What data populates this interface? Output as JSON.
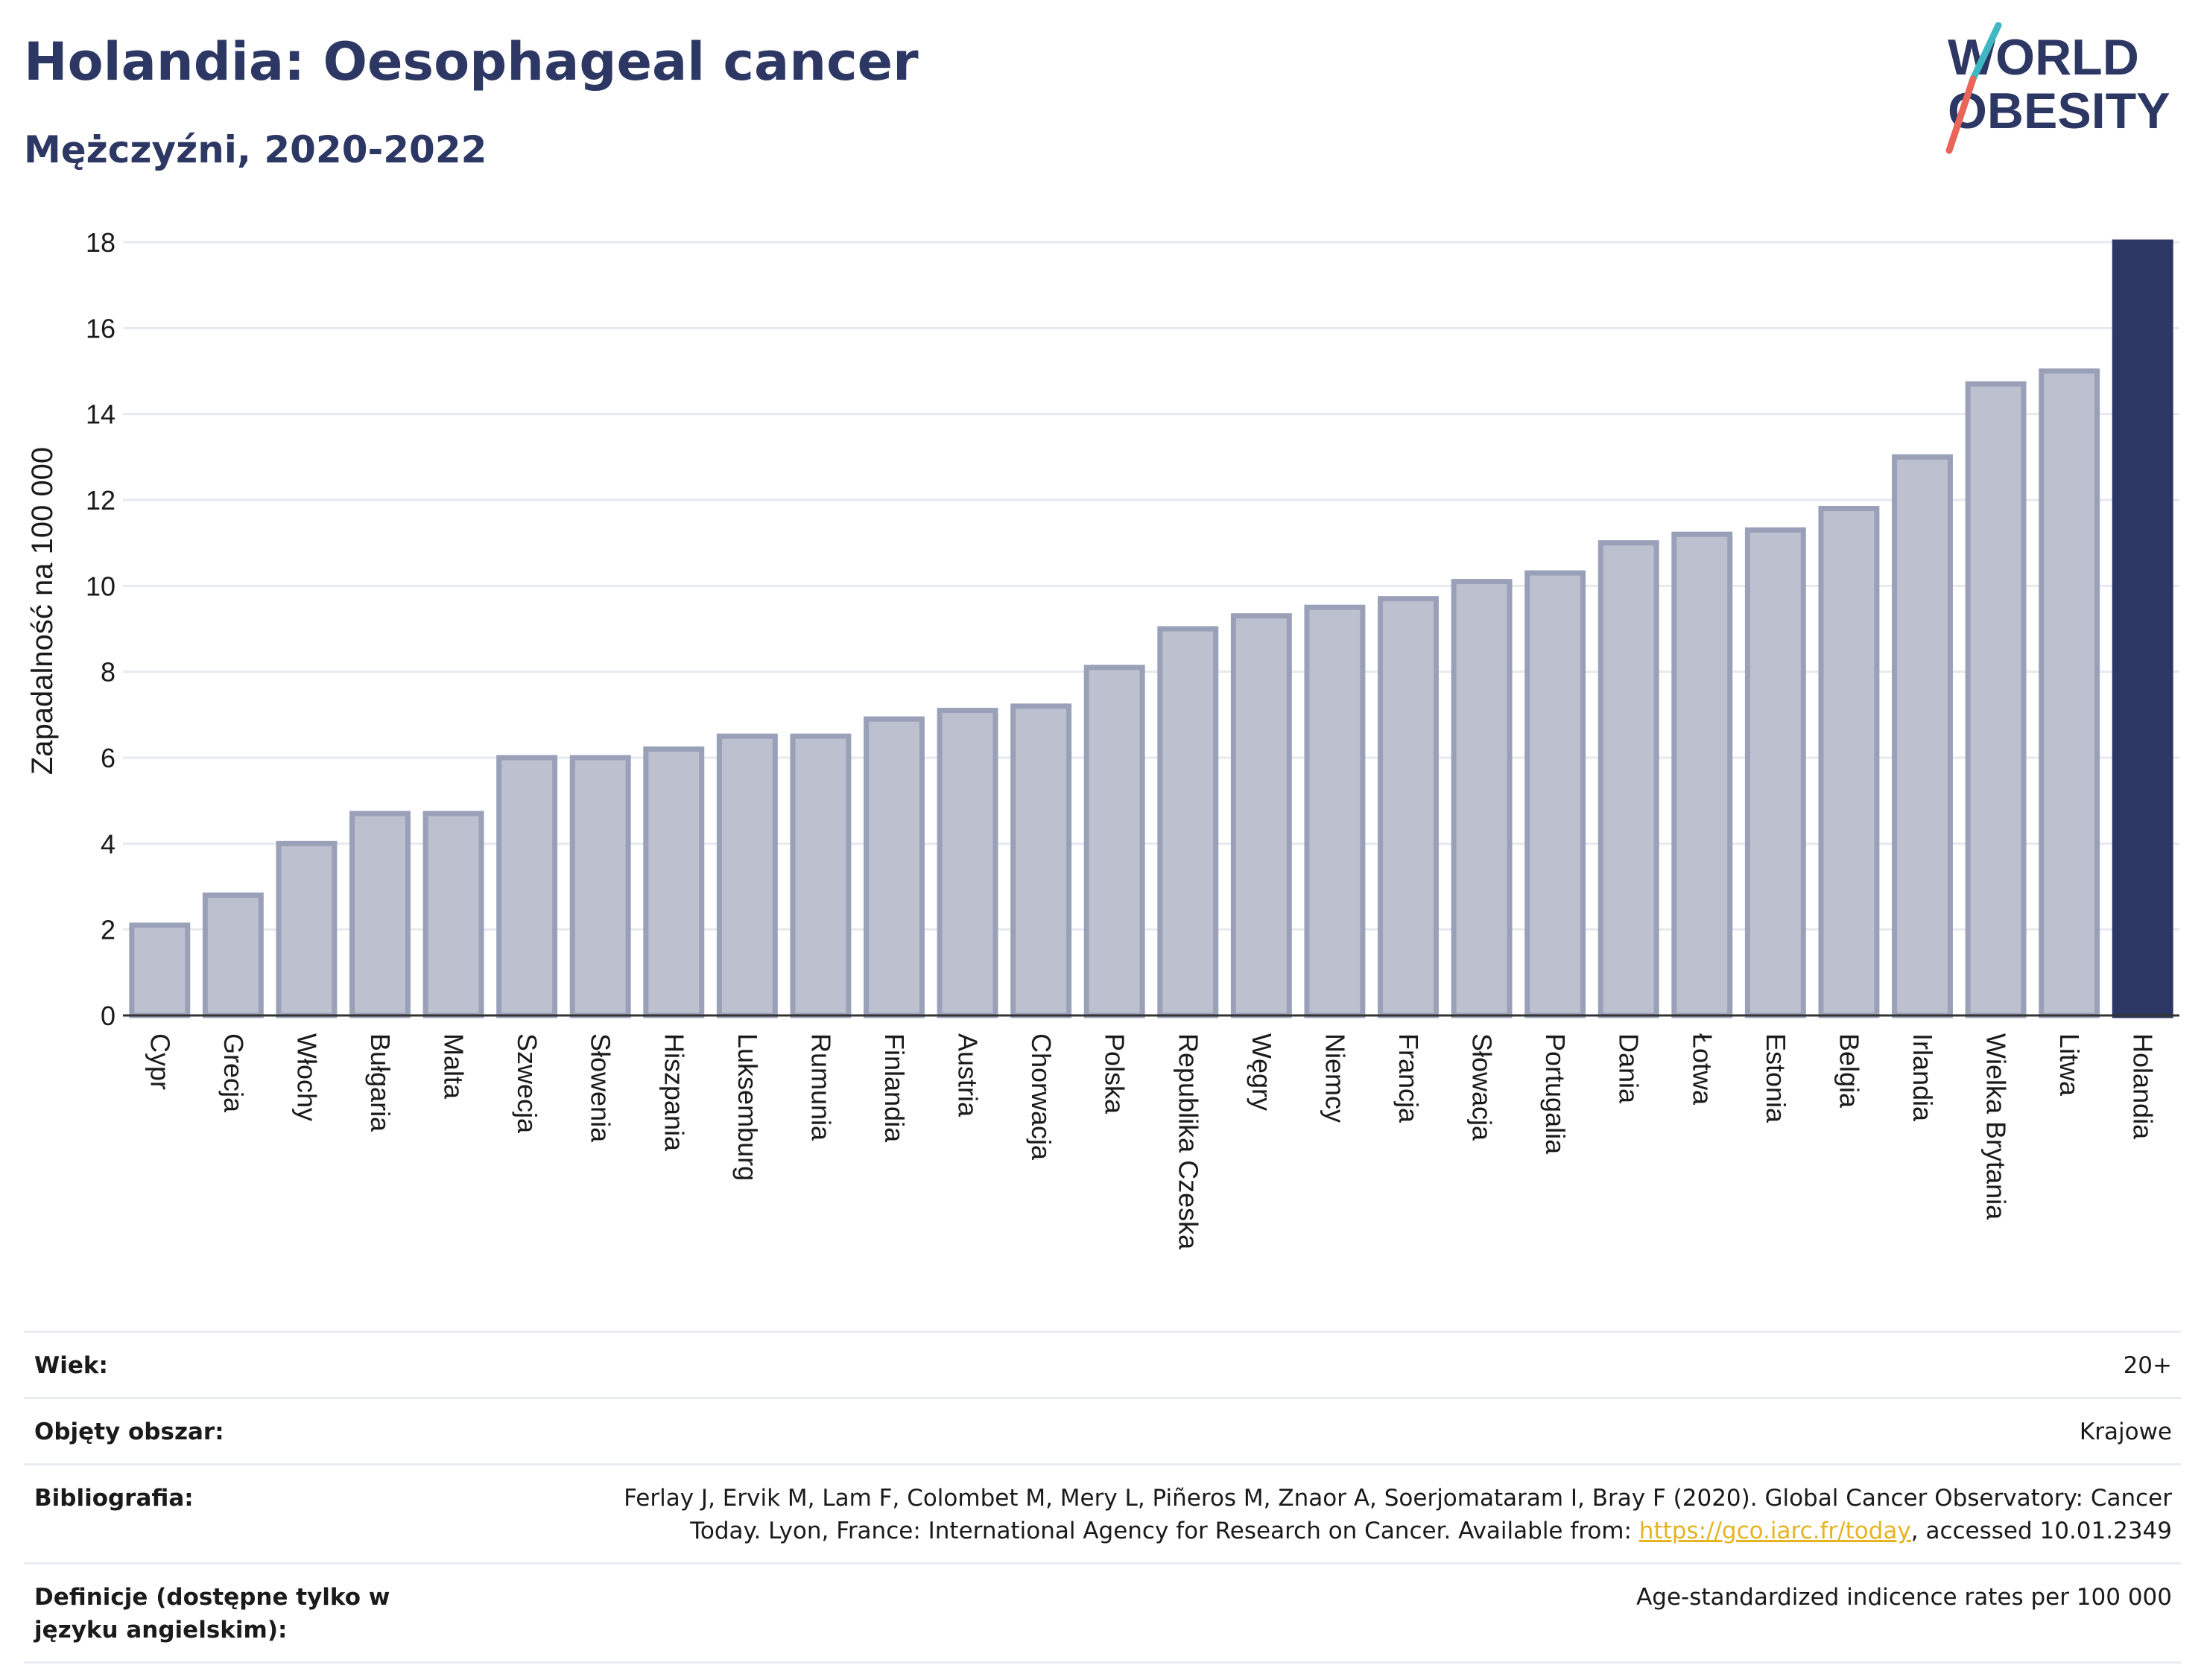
{
  "header": {
    "title": "Holandia: Oesophageal cancer",
    "subtitle": "Mężczyźni, 2020-2022"
  },
  "logo": {
    "line1": "WORLD",
    "line2": "OBESITY",
    "colors": {
      "text": "#2d3764",
      "slash_teal": "#3fb8c4",
      "slash_red": "#e8655a"
    }
  },
  "colors": {
    "bar_fill": "#bcc0cf",
    "bar_stroke": "#9aa0b8",
    "highlight": "#2d3764",
    "grid": "#e6e9ef",
    "axis": "#333333"
  },
  "chart_data": {
    "type": "bar",
    "title": "Holandia: Oesophageal cancer",
    "subtitle": "Mężczyźni, 2020-2022",
    "ylabel": "Zapadalność na 100 000",
    "xlabel": "",
    "ylim": [
      0,
      18
    ],
    "yticks": [
      0,
      2,
      4,
      6,
      8,
      10,
      12,
      14,
      16,
      18
    ],
    "grid": true,
    "highlight_category": "Holandia",
    "categories": [
      "Cypr",
      "Grecja",
      "Włochy",
      "Bułgaria",
      "Malta",
      "Szwecja",
      "Słowenia",
      "Hiszpania",
      "Luksemburg",
      "Rumunia",
      "Finlandia",
      "Austria",
      "Chorwacja",
      "Polska",
      "Republika Czeska",
      "Węgry",
      "Niemcy",
      "Francja",
      "Słowacja",
      "Portugalia",
      "Dania",
      "Łotwa",
      "Estonia",
      "Belgia",
      "Irlandia",
      "Wielka Brytania",
      "Litwa",
      "Holandia"
    ],
    "values": [
      2.1,
      2.8,
      4.0,
      4.7,
      4.7,
      6.0,
      6.0,
      6.2,
      6.5,
      6.5,
      6.9,
      7.1,
      7.2,
      8.1,
      9.0,
      9.3,
      9.5,
      9.7,
      10.1,
      10.3,
      11.0,
      11.2,
      11.3,
      11.8,
      13.0,
      14.7,
      15.0,
      18.0
    ]
  },
  "meta": {
    "age_label": "Wiek:",
    "age_value": "20+",
    "coverage_label": "Objęty obszar:",
    "coverage_value": "Krajowe",
    "bibliography_label": "Bibliografia:",
    "bibliography_line1": "Ferlay J, Ervik M, Lam F, Colombet M, Mery L, Piñeros M, Znaor A, Soerjomataram I, Bray F (2020). Global Cancer Observatory: Cancer",
    "bibliography_line2_pre": "Today. Lyon, France: International Agency for Research on Cancer. Available from: ",
    "bibliography_link": "https://gco.iarc.fr/today",
    "bibliography_line2_post": ", accessed 10.01.2349",
    "definitions_label": "Definicje (dostępne tylko w języku angielskim):",
    "definitions_value": "Age-standardized indicence rates per 100 000"
  }
}
